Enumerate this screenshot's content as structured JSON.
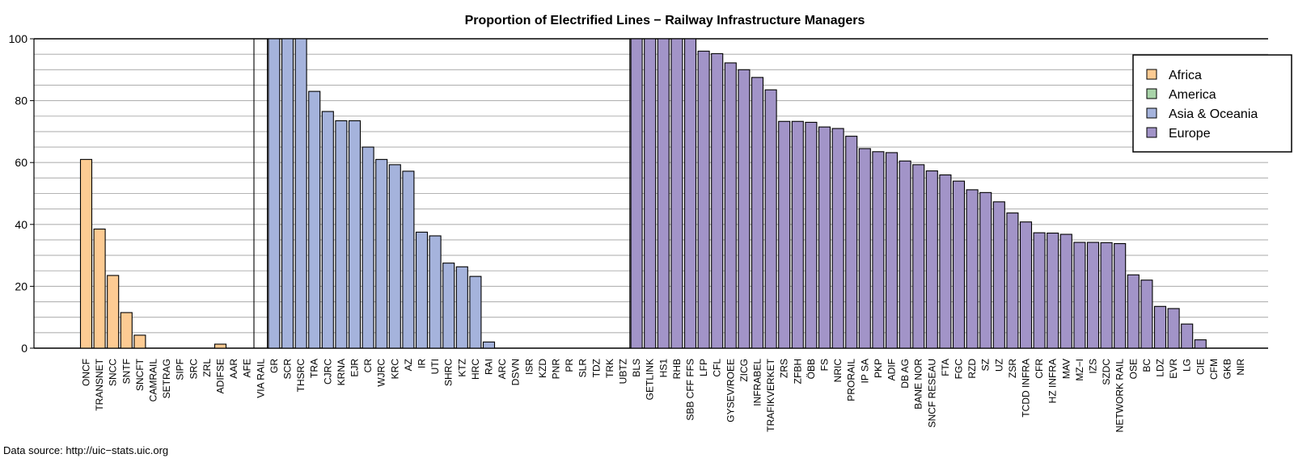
{
  "chart_data": {
    "type": "bar",
    "title": "Proportion of Electrified Lines − Railway Infrastructure Managers",
    "xlabel": "",
    "ylabel": "",
    "ylim": [
      0,
      100
    ],
    "yticks": [
      0,
      20,
      40,
      60,
      80,
      100
    ],
    "grid": true,
    "legend_position": "top-right",
    "source": "Data source: http://uic−stats.uic.org",
    "groups": [
      {
        "name": "Africa",
        "color": "#fdcb93"
      },
      {
        "name": "America",
        "color": "#a9d4a9"
      },
      {
        "name": "Asia & Oceania",
        "color": "#a5b3dc"
      },
      {
        "name": "Europe",
        "color": "#a294c8"
      }
    ],
    "categories": [
      "ONCF",
      "TRANSNET",
      "SNCC",
      "SNTF",
      "SNCFT",
      "CAMRAIL",
      "SETRAG",
      "SIPF",
      "SRC",
      "ZRL",
      "ADIFSE",
      "AAR",
      "AFE",
      "VIA RAIL",
      "GR",
      "SCR",
      "THSRC",
      "TRA",
      "CJRC",
      "KRNA",
      "EJR",
      "CR",
      "WJRC",
      "KRC",
      "AZ",
      "IR",
      "UTI",
      "SHRC",
      "KTZ",
      "HRC",
      "RAI",
      "ARC",
      "DSVN",
      "ISR",
      "KZD",
      "PNR",
      "PR",
      "SLR",
      "TDZ",
      "TRK",
      "UBTZ",
      "BLS",
      "GETLINK",
      "HS1",
      "RHB",
      "SBB CFF FFS",
      "LFP",
      "CFL",
      "GYSEV/ROEE",
      "ZICG",
      "INFRABEL",
      "TRAFIKVERKET",
      "ZRS",
      "ZFBH",
      "ÖBB",
      "FS",
      "NRIC",
      "PRORAIL",
      "IP SA",
      "PKP",
      "ADIF",
      "DB AG",
      "BANE NOR",
      "SNCF RESEAU",
      "FTA",
      "FGC",
      "RZD",
      "SZ",
      "UZ",
      "ZSR",
      "TCDD INFRA",
      "CFR",
      "HZ INFRA",
      "MAV",
      "MZ−I",
      "IZS",
      "SZDC",
      "NETWORK RAIL",
      "OSE",
      "BC",
      "LDZ",
      "EVR",
      "LG",
      "CIE",
      "CFM",
      "GKB",
      "NIR"
    ],
    "groupOf": [
      0,
      0,
      0,
      0,
      0,
      0,
      0,
      0,
      0,
      0,
      0,
      0,
      0,
      1,
      2,
      2,
      2,
      2,
      2,
      2,
      2,
      2,
      2,
      2,
      2,
      2,
      2,
      2,
      2,
      2,
      2,
      2,
      2,
      2,
      2,
      2,
      2,
      2,
      2,
      2,
      2,
      3,
      3,
      3,
      3,
      3,
      3,
      3,
      3,
      3,
      3,
      3,
      3,
      3,
      3,
      3,
      3,
      3,
      3,
      3,
      3,
      3,
      3,
      3,
      3,
      3,
      3,
      3,
      3,
      3,
      3,
      3,
      3,
      3,
      3,
      3,
      3,
      3,
      3,
      3,
      3,
      3,
      3,
      3,
      3,
      3,
      3
    ],
    "values": [
      61,
      38.5,
      23.5,
      11.5,
      4.2,
      0,
      0,
      0,
      0,
      0,
      1.3,
      0,
      0,
      0,
      100,
      100,
      100,
      83,
      76.5,
      73.5,
      73.5,
      65,
      61,
      59.3,
      57.2,
      37.5,
      36.3,
      27.5,
      26.3,
      23.2,
      2,
      0,
      0,
      0,
      0,
      0,
      0,
      0,
      0,
      0,
      0,
      100,
      100,
      100,
      100,
      100,
      96,
      95.2,
      92.2,
      90,
      87.5,
      83.5,
      73.3,
      73.3,
      73,
      71.5,
      71,
      68.5,
      64.5,
      63.5,
      63.2,
      60.5,
      59.3,
      57.3,
      56,
      54,
      51.2,
      50.3,
      47.3,
      43.7,
      40.8,
      37.3,
      37.2,
      36.8,
      34.2,
      34.2,
      34.1,
      33.8,
      23.7,
      22,
      13.5,
      12.8,
      7.8,
      2.7,
      0,
      0,
      0
    ]
  }
}
